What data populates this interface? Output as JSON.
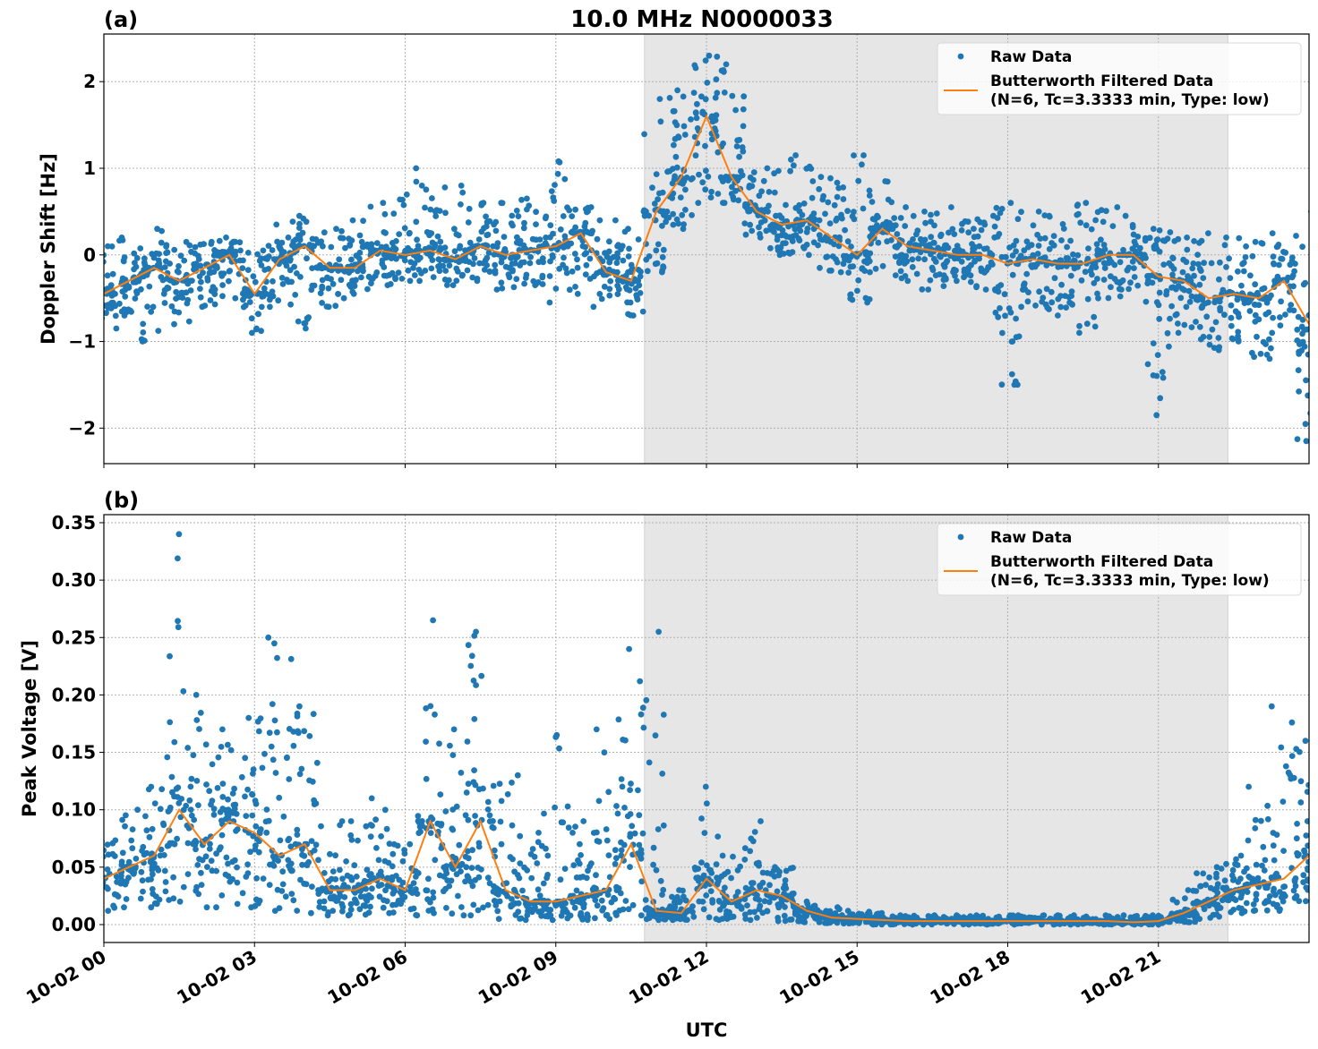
{
  "title": "10.0 MHz N0000033",
  "xlabel": "UTC",
  "colors": {
    "raw": "#1f77b4",
    "filtered": "#ff7f0e",
    "shade": "#e6e6e6"
  },
  "chart_data": [
    {
      "type": "scatter+line",
      "panel_label": "(a)",
      "ylabel": "Doppler Shift [Hz]",
      "xlim": [
        "10-02 00:00",
        "10-03 00:00"
      ],
      "ylim": [
        -2.41,
        2.55
      ],
      "grid": true,
      "legend_placement": "top-right",
      "xticks": [
        "10-02 00",
        "10-02 03",
        "10-02 06",
        "10-02 09",
        "10-02 12",
        "10-02 15",
        "10-02 18",
        "10-02 21"
      ],
      "yticks": [
        -2,
        -1,
        0,
        1,
        2
      ],
      "ytick_labels": [
        "−2",
        "−1",
        "0",
        "1",
        "2"
      ],
      "shaded_span": [
        "10-02 10:46",
        "10-02 22:23"
      ],
      "x_hours": [
        0,
        0.5,
        1,
        1.5,
        2,
        2.5,
        3,
        3.5,
        4,
        4.5,
        5,
        5.5,
        6,
        6.5,
        7,
        7.5,
        8,
        8.5,
        9,
        9.5,
        10,
        10.5,
        11,
        11.5,
        12,
        12.5,
        13,
        13.5,
        14,
        14.5,
        15,
        15.5,
        16,
        16.5,
        17,
        17.5,
        18,
        18.5,
        19,
        19.5,
        20,
        20.5,
        21,
        21.5,
        22,
        22.5,
        23,
        23.5,
        24
      ],
      "series": [
        {
          "name": "Butterworth Filtered Data\n(N=6, Tc=3.3333 min, Type: low)",
          "legend_line1": "Butterworth Filtered Data",
          "legend_line2": "(N=6, Tc=3.3333 min, Type: low)",
          "values": [
            -0.45,
            -0.3,
            -0.15,
            -0.3,
            -0.15,
            0.0,
            -0.45,
            -0.05,
            0.1,
            -0.15,
            -0.15,
            0.05,
            0.0,
            0.05,
            -0.05,
            0.1,
            0.0,
            0.05,
            0.1,
            0.25,
            -0.2,
            -0.3,
            0.5,
            0.9,
            1.6,
            0.9,
            0.5,
            0.35,
            0.4,
            0.2,
            0.0,
            0.3,
            0.1,
            0.05,
            0.0,
            0.0,
            -0.1,
            -0.05,
            -0.1,
            -0.1,
            0.0,
            0.0,
            -0.25,
            -0.3,
            -0.5,
            -0.45,
            -0.5,
            -0.3,
            -0.8
          ]
        },
        {
          "name": "Raw Data",
          "low": [
            -0.85,
            -0.7,
            -1.0,
            -0.8,
            -0.6,
            -0.5,
            -0.9,
            -0.6,
            -0.85,
            -0.6,
            -0.5,
            -0.35,
            -0.3,
            -0.3,
            -0.35,
            -0.3,
            -0.4,
            -0.35,
            -0.55,
            -0.45,
            -0.6,
            -0.7,
            -0.2,
            0.3,
            0.6,
            0.6,
            0.2,
            0.0,
            0.0,
            -0.2,
            -0.55,
            -0.2,
            -0.3,
            -0.4,
            -0.3,
            -0.4,
            -1.5,
            -0.6,
            -0.7,
            -0.9,
            -0.5,
            -0.4,
            -1.85,
            -0.9,
            -1.1,
            -1.0,
            -1.2,
            -0.9,
            -2.15
          ],
          "high": [
            0.1,
            0.2,
            0.3,
            0.15,
            0.15,
            0.2,
            0.05,
            0.35,
            0.45,
            0.3,
            0.4,
            0.6,
            1.0,
            0.8,
            0.8,
            0.6,
            0.6,
            0.65,
            1.08,
            0.55,
            0.4,
            0.3,
            1.8,
            1.9,
            2.3,
            2.2,
            1.0,
            1.1,
            1.15,
            0.9,
            1.15,
            0.85,
            0.55,
            0.5,
            0.55,
            0.45,
            0.6,
            0.5,
            0.45,
            0.6,
            0.55,
            0.45,
            0.3,
            0.2,
            0.25,
            0.2,
            0.15,
            0.25,
            0.5
          ]
        }
      ]
    },
    {
      "type": "scatter+line",
      "panel_label": "(b)",
      "ylabel": "Peak Voltage [V]",
      "xlim": [
        "10-02 00:00",
        "10-03 00:00"
      ],
      "ylim": [
        -0.0156,
        0.357
      ],
      "grid": true,
      "legend_placement": "top-right",
      "xticks": [
        "10-02 00",
        "10-02 03",
        "10-02 06",
        "10-02 09",
        "10-02 12",
        "10-02 15",
        "10-02 18",
        "10-02 21"
      ],
      "yticks": [
        0,
        0.05,
        0.1,
        0.15,
        0.2,
        0.25,
        0.3,
        0.35
      ],
      "ytick_labels": [
        "0.00",
        "0.05",
        "0.10",
        "0.15",
        "0.20",
        "0.25",
        "0.30",
        "0.35"
      ],
      "shaded_span": [
        "10-02 10:46",
        "10-02 22:23"
      ],
      "x_hours": [
        0,
        0.5,
        1,
        1.5,
        2,
        2.5,
        3,
        3.5,
        4,
        4.5,
        5,
        5.5,
        6,
        6.5,
        7,
        7.5,
        8,
        8.5,
        9,
        9.5,
        10,
        10.5,
        11,
        11.5,
        12,
        12.5,
        13,
        13.5,
        14,
        14.5,
        15,
        15.5,
        16,
        16.5,
        17,
        17.5,
        18,
        18.5,
        19,
        19.5,
        20,
        20.5,
        21,
        21.5,
        22,
        22.5,
        23,
        23.5,
        24
      ],
      "series": [
        {
          "name": "Butterworth Filtered Data\n(N=6, Tc=3.3333 min, Type: low)",
          "legend_line1": "Butterworth Filtered Data",
          "legend_line2": "(N=6, Tc=3.3333 min, Type: low)",
          "values": [
            0.04,
            0.05,
            0.06,
            0.1,
            0.07,
            0.09,
            0.08,
            0.06,
            0.07,
            0.03,
            0.03,
            0.04,
            0.03,
            0.09,
            0.05,
            0.09,
            0.03,
            0.02,
            0.02,
            0.025,
            0.03,
            0.07,
            0.012,
            0.01,
            0.04,
            0.02,
            0.03,
            0.025,
            0.012,
            0.006,
            0.005,
            0.004,
            0.003,
            0.003,
            0.003,
            0.003,
            0.003,
            0.003,
            0.003,
            0.003,
            0.003,
            0.002,
            0.003,
            0.01,
            0.02,
            0.03,
            0.035,
            0.04,
            0.06
          ]
        },
        {
          "name": "Raw Data",
          "low": [
            0.012,
            0.015,
            0.015,
            0.02,
            0.015,
            0.018,
            0.015,
            0.012,
            0.01,
            0.008,
            0.008,
            0.01,
            0.008,
            0.01,
            0.008,
            0.008,
            0.005,
            0.004,
            0.004,
            0.004,
            0.005,
            0.008,
            0.004,
            0.004,
            0.005,
            0.004,
            0.004,
            0.003,
            0.002,
            0.001,
            0.001,
            0.0,
            0.0,
            0.0,
            0.0,
            0.0,
            0.0,
            0.0,
            0.0,
            0.0,
            0.0,
            0.0,
            0.0,
            0.002,
            0.005,
            0.01,
            0.012,
            0.012,
            0.015
          ],
          "high": [
            0.09,
            0.1,
            0.12,
            0.34,
            0.2,
            0.17,
            0.18,
            0.25,
            0.19,
            0.09,
            0.09,
            0.11,
            0.07,
            0.265,
            0.17,
            0.255,
            0.13,
            0.08,
            0.165,
            0.09,
            0.17,
            0.24,
            0.255,
            0.03,
            0.12,
            0.06,
            0.09,
            0.05,
            0.02,
            0.015,
            0.012,
            0.01,
            0.008,
            0.008,
            0.008,
            0.008,
            0.008,
            0.008,
            0.008,
            0.008,
            0.008,
            0.008,
            0.008,
            0.03,
            0.05,
            0.06,
            0.12,
            0.19,
            0.16
          ]
        }
      ]
    }
  ]
}
